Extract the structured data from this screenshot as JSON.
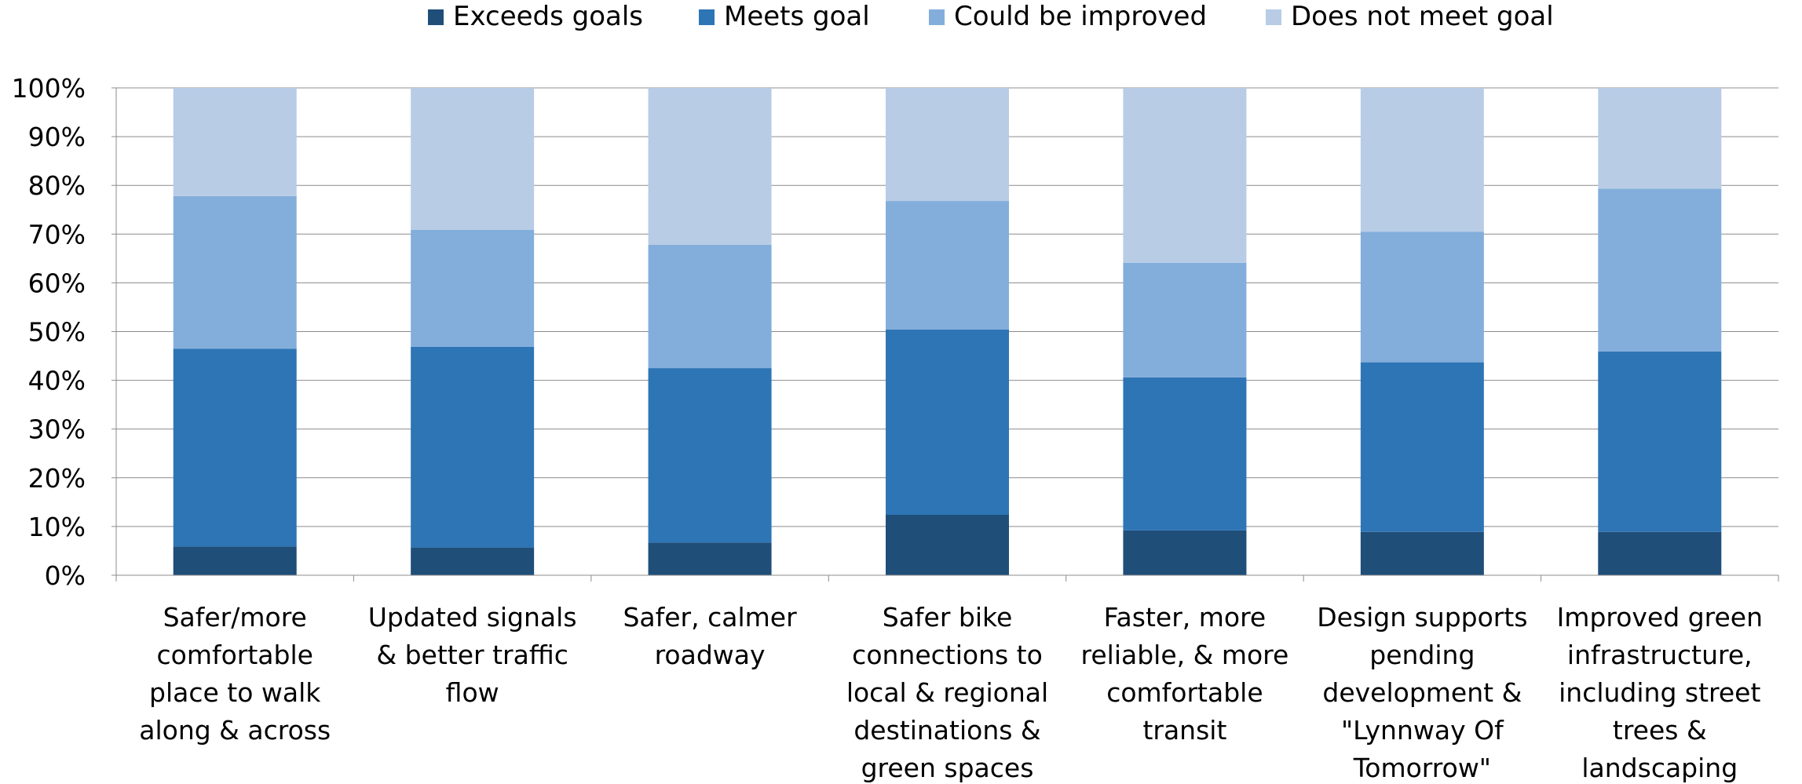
{
  "chart_data": {
    "type": "bar",
    "stacked": true,
    "percent_stacked": true,
    "legend_position": "top",
    "grid": true,
    "ylim": [
      0,
      100
    ],
    "y_ticks": [
      "0%",
      "10%",
      "20%",
      "30%",
      "40%",
      "50%",
      "60%",
      "70%",
      "80%",
      "90%",
      "100%"
    ],
    "categories": [
      [
        "Safer/more",
        "comfortable",
        "place to walk",
        "along & across"
      ],
      [
        "Updated signals",
        "& better traffic",
        "flow"
      ],
      [
        "Safer, calmer",
        "roadway"
      ],
      [
        "Safer bike",
        "connections to",
        "local & regional",
        "destinations &",
        "green spaces"
      ],
      [
        "Faster, more",
        "reliable, & more",
        "comfortable",
        "transit"
      ],
      [
        "Design supports",
        "pending",
        "development &",
        "\"Lynnway Of",
        "Tomorrow\""
      ],
      [
        "Improved green",
        "infrastructure,",
        "including street",
        "trees &",
        "landscaping"
      ]
    ],
    "series": [
      {
        "name": "Exceeds goals",
        "color": "#1f4e79",
        "values": [
          5.9,
          5.7,
          6.7,
          12.4,
          9.2,
          8.9,
          8.9
        ]
      },
      {
        "name": "Meets goal",
        "color": "#2e75b6",
        "values": [
          40.6,
          41.2,
          35.8,
          38.0,
          31.4,
          34.8,
          37.0
        ]
      },
      {
        "name": "Could be improved",
        "color": "#83aedb",
        "values": [
          31.3,
          24.0,
          25.3,
          26.4,
          23.5,
          26.8,
          33.4
        ]
      },
      {
        "name": "Does not meet goal",
        "color": "#b8cce6",
        "values": [
          22.2,
          29.1,
          32.2,
          23.2,
          35.9,
          29.5,
          20.7
        ]
      }
    ]
  }
}
